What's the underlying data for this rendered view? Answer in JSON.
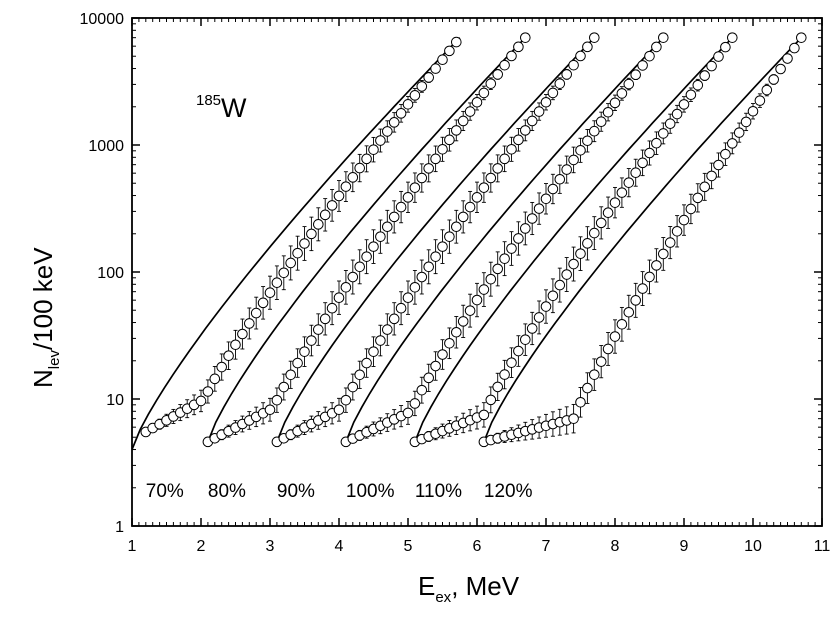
{
  "chart_data": {
    "type": "scatter",
    "xlabel": {
      "main": "E",
      "sub": "ex",
      "rest": ", MeV"
    },
    "ylabel": {
      "main": "N",
      "sub": "lev",
      "rest": "/100 keV"
    },
    "xlim": [
      1,
      11
    ],
    "ylim": [
      1,
      10000
    ],
    "yscale": "log",
    "x_ticks": [
      "1",
      "2",
      "3",
      "4",
      "5",
      "6",
      "7",
      "8",
      "9",
      "10",
      "11"
    ],
    "y_ticks": [
      "1",
      "10",
      "100",
      "1000",
      "10000"
    ],
    "annotation": {
      "mass": "185",
      "element": "W"
    },
    "series": [
      {
        "label": "70%",
        "start": 1.2,
        "end": 5.75,
        "y_start": 5.5,
        "y_end": 7000,
        "knee_x": 2.05,
        "knee_y": 10.0,
        "fit_start": 1.0,
        "fit_y_start": 4.0
      },
      {
        "label": "80%",
        "start": 2.1,
        "end": 6.7,
        "y_start": 4.6,
        "y_end": 7000,
        "knee_x": 3.05,
        "knee_y": 8.5,
        "fit_start": 2.1,
        "fit_y_start": 4.6
      },
      {
        "label": "90%",
        "start": 3.1,
        "end": 7.7,
        "y_start": 4.6,
        "y_end": 7000,
        "knee_x": 4.05,
        "knee_y": 8.5,
        "fit_start": 3.1,
        "fit_y_start": 4.6
      },
      {
        "label": "100%",
        "start": 4.1,
        "end": 8.7,
        "y_start": 4.6,
        "y_end": 7000,
        "knee_x": 5.05,
        "knee_y": 8.0,
        "fit_start": 4.1,
        "fit_y_start": 4.6
      },
      {
        "label": "110%",
        "start": 5.1,
        "end": 9.7,
        "y_start": 4.6,
        "y_end": 7000,
        "knee_x": 6.1,
        "knee_y": 7.5,
        "fit_start": 5.1,
        "fit_y_start": 4.6
      },
      {
        "label": "120%",
        "start": 6.1,
        "end": 10.7,
        "y_start": 4.6,
        "y_end": 7000,
        "knee_x": 7.4,
        "knee_y": 7.0,
        "fit_start": 6.1,
        "fit_y_start": 4.6
      }
    ]
  }
}
